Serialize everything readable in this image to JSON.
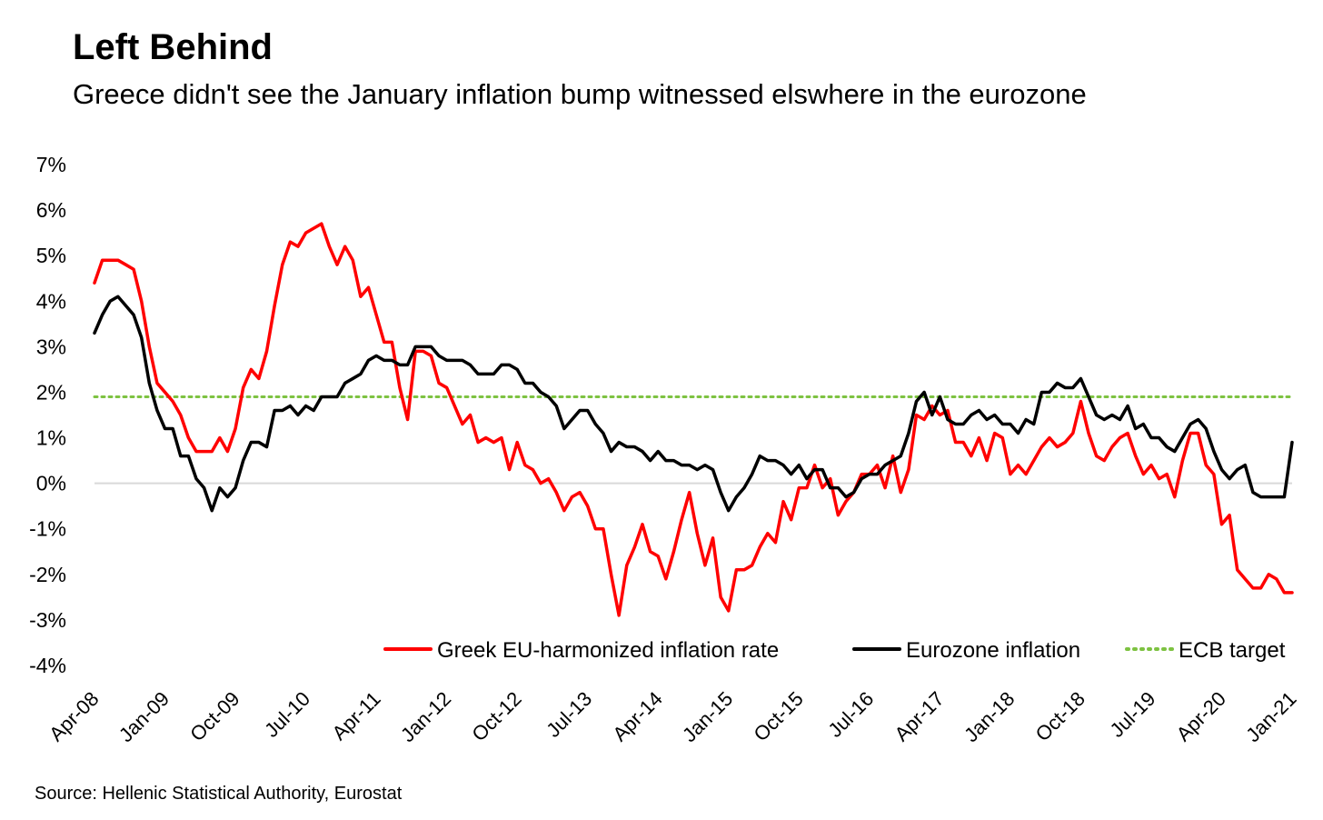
{
  "header": {
    "title": "Left Behind",
    "subtitle": "Greece didn't see the January inflation bump witnessed elswhere in the eurozone"
  },
  "footer": {
    "source": "Source: Hellenic Statistical Authority, Eurostat"
  },
  "chart_data": {
    "type": "line",
    "title": "Left Behind",
    "subtitle": "Greece didn't see the January inflation bump witnessed elswhere in the eurozone",
    "xlabel": "",
    "ylabel": "",
    "x_start": "Apr-08",
    "x_end": "Jan-21",
    "x_tick_labels": [
      "Apr-08",
      "Jan-09",
      "Oct-09",
      "Jul-10",
      "Apr-11",
      "Jan-12",
      "Oct-12",
      "Jul-13",
      "Apr-14",
      "Jan-15",
      "Oct-15",
      "Jul-16",
      "Apr-17",
      "Jan-18",
      "Oct-18",
      "Jul-19",
      "Apr-20",
      "Jan-21"
    ],
    "x_tick_every_months": 9,
    "ylim": [
      -4,
      7
    ],
    "y_ticks": [
      -4,
      -3,
      -2,
      -1,
      0,
      1,
      2,
      3,
      4,
      5,
      6,
      7
    ],
    "y_unit": "%",
    "grid": false,
    "zero_line": true,
    "legend_position": "bottom-right",
    "series": [
      {
        "name": "Greek EU-harmonized inflation rate",
        "color": "#ff0000",
        "style": "solid",
        "values": [
          4.4,
          4.9,
          4.9,
          4.9,
          4.8,
          4.7,
          4.0,
          3.0,
          2.2,
          2.0,
          1.8,
          1.5,
          1.0,
          0.7,
          0.7,
          0.7,
          1.0,
          0.7,
          1.2,
          2.1,
          2.5,
          2.3,
          2.9,
          3.9,
          4.8,
          5.3,
          5.2,
          5.5,
          5.6,
          5.7,
          5.2,
          4.8,
          5.2,
          4.9,
          4.1,
          4.3,
          3.7,
          3.1,
          3.1,
          2.1,
          1.4,
          2.9,
          2.9,
          2.8,
          2.2,
          2.1,
          1.7,
          1.3,
          1.5,
          0.9,
          1.0,
          0.9,
          1.0,
          0.3,
          0.9,
          0.4,
          0.3,
          0.0,
          0.1,
          -0.2,
          -0.6,
          -0.3,
          -0.2,
          -0.5,
          -1.0,
          -1.0,
          -2.0,
          -2.9,
          -1.8,
          -1.4,
          -0.9,
          -1.5,
          -1.6,
          -2.1,
          -1.5,
          -0.8,
          -0.2,
          -1.1,
          -1.8,
          -1.2,
          -2.5,
          -2.8,
          -1.9,
          -1.9,
          -1.8,
          -1.4,
          -1.1,
          -1.3,
          -0.4,
          -0.8,
          -0.1,
          -0.1,
          0.4,
          -0.1,
          0.1,
          -0.7,
          -0.4,
          -0.2,
          0.2,
          0.2,
          0.4,
          -0.1,
          0.6,
          -0.2,
          0.3,
          1.5,
          1.4,
          1.7,
          1.5,
          1.6,
          0.9,
          0.9,
          0.6,
          1.0,
          0.5,
          1.1,
          1.0,
          0.2,
          0.4,
          0.2,
          0.5,
          0.8,
          1.0,
          0.8,
          0.9,
          1.1,
          1.8,
          1.1,
          0.6,
          0.5,
          0.8,
          1.0,
          1.1,
          0.6,
          0.2,
          0.4,
          0.1,
          0.2,
          -0.3,
          0.5,
          1.1,
          1.1,
          0.4,
          0.2,
          -0.9,
          -0.7,
          -1.9,
          -2.1,
          -2.3,
          -2.3,
          -2.0,
          -2.1,
          -2.4,
          -2.4
        ]
      },
      {
        "name": "Eurozone inflation",
        "color": "#000000",
        "style": "solid",
        "values": [
          3.3,
          3.7,
          4.0,
          4.1,
          3.9,
          3.7,
          3.2,
          2.2,
          1.6,
          1.2,
          1.2,
          0.6,
          0.6,
          0.1,
          -0.1,
          -0.6,
          -0.1,
          -0.3,
          -0.1,
          0.5,
          0.9,
          0.9,
          0.8,
          1.6,
          1.6,
          1.7,
          1.5,
          1.7,
          1.6,
          1.9,
          1.9,
          1.9,
          2.2,
          2.3,
          2.4,
          2.7,
          2.8,
          2.7,
          2.7,
          2.6,
          2.6,
          3.0,
          3.0,
          3.0,
          2.8,
          2.7,
          2.7,
          2.7,
          2.6,
          2.4,
          2.4,
          2.4,
          2.6,
          2.6,
          2.5,
          2.2,
          2.2,
          2.0,
          1.9,
          1.7,
          1.2,
          1.4,
          1.6,
          1.6,
          1.3,
          1.1,
          0.7,
          0.9,
          0.8,
          0.8,
          0.7,
          0.5,
          0.7,
          0.5,
          0.5,
          0.4,
          0.4,
          0.3,
          0.4,
          0.3,
          -0.2,
          -0.6,
          -0.3,
          -0.1,
          0.2,
          0.6,
          0.5,
          0.5,
          0.4,
          0.2,
          0.4,
          0.1,
          0.3,
          0.3,
          -0.1,
          -0.1,
          -0.3,
          -0.2,
          0.1,
          0.2,
          0.2,
          0.4,
          0.5,
          0.6,
          1.1,
          1.8,
          2.0,
          1.5,
          1.9,
          1.4,
          1.3,
          1.3,
          1.5,
          1.6,
          1.4,
          1.5,
          1.3,
          1.3,
          1.1,
          1.4,
          1.3,
          2.0,
          2.0,
          2.2,
          2.1,
          2.1,
          2.3,
          1.9,
          1.5,
          1.4,
          1.5,
          1.4,
          1.7,
          1.2,
          1.3,
          1.0,
          1.0,
          0.8,
          0.7,
          1.0,
          1.3,
          1.4,
          1.2,
          0.7,
          0.3,
          0.1,
          0.3,
          0.4,
          -0.2,
          -0.3,
          -0.3,
          -0.3,
          -0.3,
          0.9
        ]
      },
      {
        "name": "ECB target",
        "color": "#7dc241",
        "style": "dotted",
        "values": [
          1.9,
          1.9
        ]
      }
    ]
  }
}
